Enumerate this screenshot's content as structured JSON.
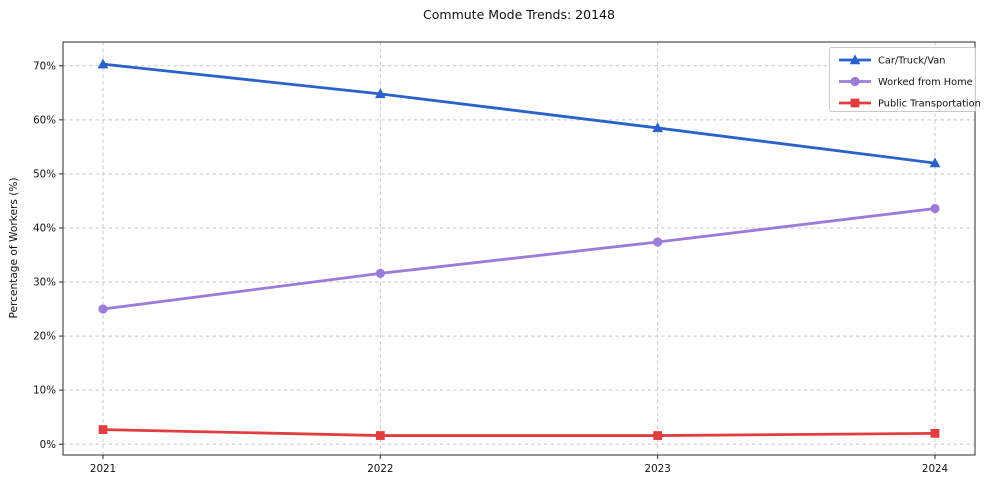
{
  "chart_data": {
    "type": "line",
    "title": "Commute Mode Trends: 20148",
    "xlabel": "",
    "ylabel": "Percentage of Workers (%)",
    "categories": [
      "2021",
      "2022",
      "2023",
      "2024"
    ],
    "series": [
      {
        "name": "Car/Truck/Van",
        "marker": "triangle",
        "color": "#2a62c9",
        "values": [
          70.3,
          64.8,
          58.5,
          52.0
        ]
      },
      {
        "name": "Worked from Home",
        "marker": "circle",
        "color": "#9b7cd9",
        "values": [
          25.0,
          31.6,
          37.4,
          43.6
        ]
      },
      {
        "name": "Public Transportation",
        "marker": "square",
        "color": "#e13f3f",
        "values": [
          2.7,
          1.6,
          1.6,
          2.0
        ]
      }
    ],
    "ytick_labels": [
      "0%",
      "10%",
      "20%",
      "30%",
      "40%",
      "50%",
      "60%",
      "70%"
    ],
    "ytick_values": [
      0,
      10,
      20,
      30,
      40,
      50,
      60,
      70
    ],
    "ylim": [
      -2.0,
      74.4
    ],
    "grid": true,
    "legend_position": "top-right",
    "colors": {
      "grid": "#c9c9c9",
      "spine": "#2b2b2b",
      "tick_text": "#111111",
      "legend_border": "#c9c9c9",
      "legend_bg": "#ffffff"
    }
  }
}
